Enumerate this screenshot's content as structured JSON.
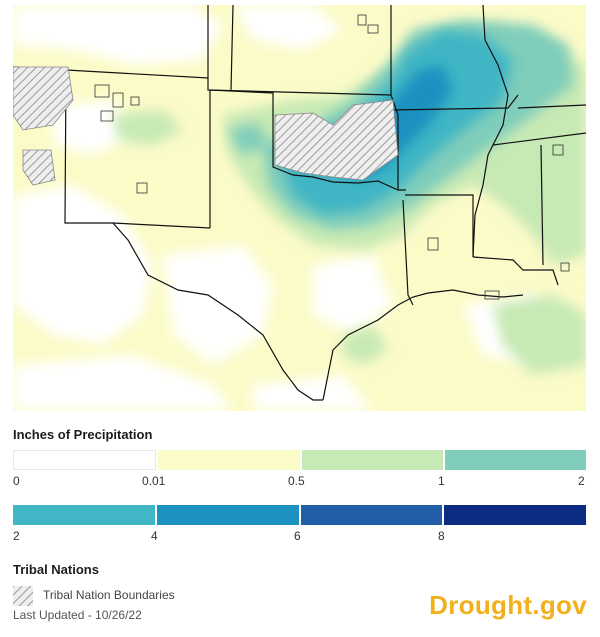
{
  "map": {
    "colors": {
      "none": "#ffffff",
      "c001": "#fbfbc8",
      "c05": "#c7e9b4",
      "c1": "#7fcdbb",
      "c2": "#41b6c4",
      "c4": "#1d91c0",
      "c6": "#225ea8",
      "c8": "#0c2c84",
      "border": "#111111",
      "tribal": "#888888"
    }
  },
  "legend": {
    "precip_title": "Inches of Precipitation",
    "row1_colors": [
      "#ffffff",
      "#fbfbc8",
      "#c7e9b4",
      "#7fcdbb"
    ],
    "row1_ticks": [
      "0",
      "0.01",
      "0.5",
      "1",
      "2"
    ],
    "row2_colors": [
      "#41b6c4",
      "#1d91c0",
      "#225ea8",
      "#0c2c84"
    ],
    "row2_ticks": [
      "2",
      "4",
      "6",
      "8"
    ],
    "tribal_title": "Tribal Nations",
    "tribal_label": "Tribal Nation Boundaries"
  },
  "footer": {
    "last_updated": "Last Updated - 10/26/22",
    "brand": "Drought.gov"
  }
}
